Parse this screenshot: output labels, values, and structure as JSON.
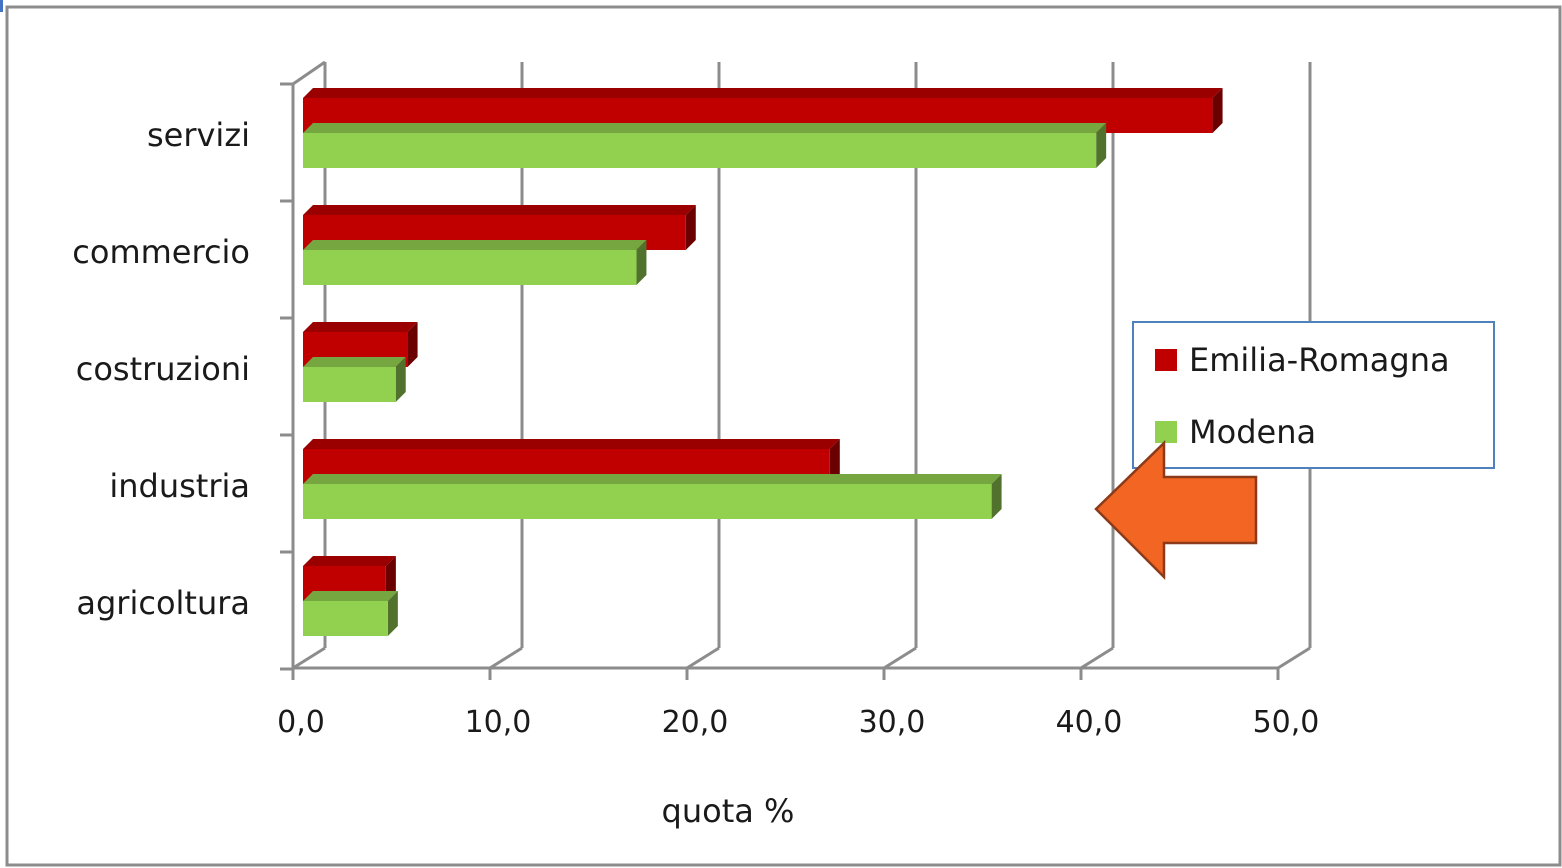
{
  "chart_data": {
    "type": "bar",
    "orientation": "horizontal",
    "categories": [
      "servizi",
      "commercio",
      "costruzioni",
      "industria",
      "agricoltura"
    ],
    "series": [
      {
        "name": "Emilia-Romagna",
        "color": "#C00000",
        "values": [
          46.1,
          19.4,
          5.3,
          26.7,
          4.2
        ]
      },
      {
        "name": "Modena",
        "color": "#92D050",
        "values": [
          40.2,
          16.9,
          4.7,
          34.9,
          4.3
        ]
      }
    ],
    "x_ticks": [
      "0,0",
      "10,0",
      "20,0",
      "30,0",
      "40,0",
      "50,0"
    ],
    "xlim": [
      0,
      50
    ],
    "xlabel": "quota %",
    "ylabel": "",
    "title": "",
    "grid": true,
    "three_d": true,
    "legend_position": "right",
    "annotation": {
      "shape": "arrow-left",
      "color": "#F26522",
      "points_to": "industria"
    }
  }
}
